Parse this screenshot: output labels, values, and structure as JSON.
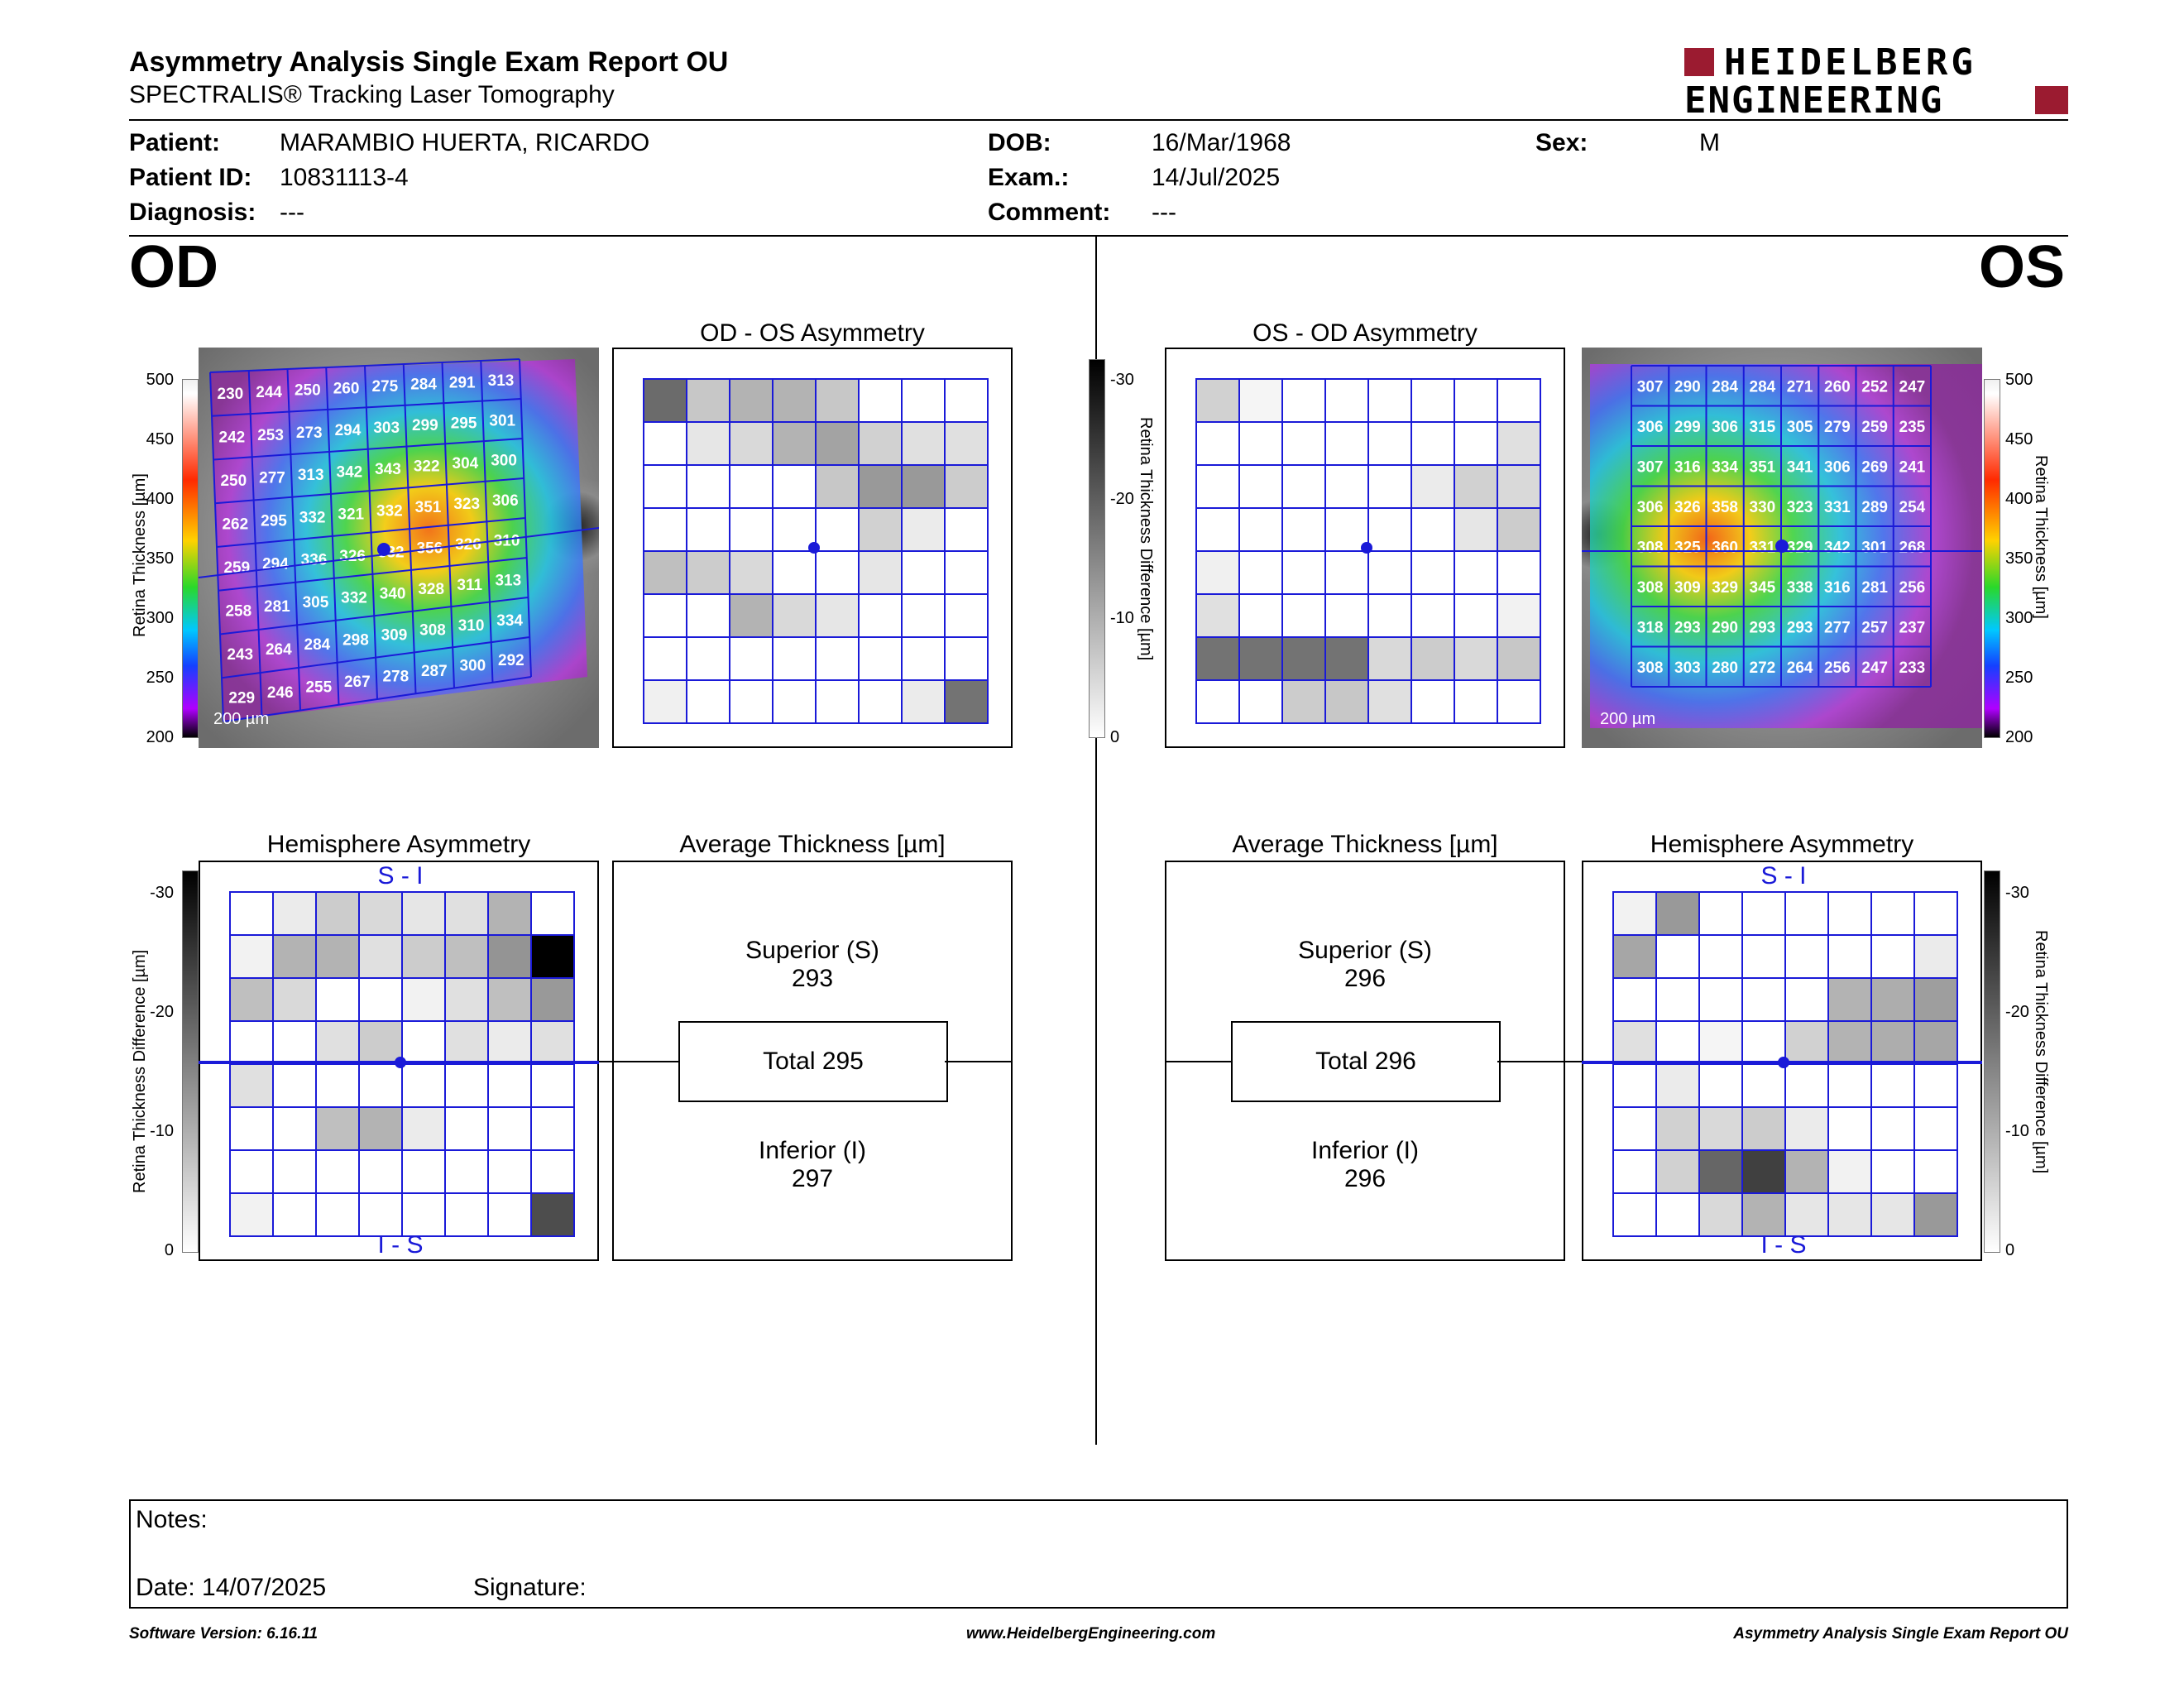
{
  "header": {
    "title": "Asymmetry Analysis Single Exam Report OU",
    "subtitle": "SPECTRALIS® Tracking Laser Tomography",
    "logo_line1": "HEIDELBERG",
    "logo_line2": "ENGINEERING",
    "brand_color": "#9b1b30"
  },
  "patient": {
    "patient_label": "Patient:",
    "patient_value": "MARAMBIO HUERTA, RICARDO",
    "id_label": "Patient ID:",
    "id_value": "10831113-4",
    "diagnosis_label": "Diagnosis:",
    "diagnosis_value": "---",
    "dob_label": "DOB:",
    "dob_value": "16/Mar/1968",
    "exam_label": "Exam.:",
    "exam_value": "14/Jul/2025",
    "comment_label": "Comment:",
    "comment_value": "---",
    "sex_label": "Sex:",
    "sex_value": "M"
  },
  "od": {
    "eye_label": "OD",
    "asym_title": "OD - OS Asymmetry",
    "hemi_title": "Hemisphere Asymmetry",
    "avg_title": "Average Thickness [µm]",
    "scale_label": "200 µm",
    "si_label": "S - I",
    "is_label": "I - S",
    "superior_label": "Superior (S)",
    "superior_value": "293",
    "total_label": "Total 295",
    "inferior_label": "Inferior (I)",
    "inferior_value": "297",
    "thickness_grid": [
      [
        230,
        244,
        250,
        260,
        275,
        284,
        291,
        313
      ],
      [
        242,
        253,
        273,
        294,
        303,
        299,
        295,
        301
      ],
      [
        250,
        277,
        313,
        342,
        343,
        322,
        304,
        300
      ],
      [
        262,
        295,
        332,
        321,
        332,
        351,
        323,
        306
      ],
      [
        259,
        294,
        336,
        326,
        332,
        356,
        326,
        310
      ],
      [
        258,
        281,
        305,
        332,
        340,
        328,
        311,
        313
      ],
      [
        243,
        264,
        284,
        298,
        309,
        308,
        310,
        334
      ],
      [
        229,
        246,
        255,
        267,
        278,
        287,
        300,
        292
      ]
    ],
    "asym_grid": [
      [
        0.58,
        0.22,
        0.3,
        0.3,
        0.22,
        0,
        0,
        0
      ],
      [
        0,
        0.1,
        0.15,
        0.3,
        0.36,
        0.18,
        0.12,
        0.12
      ],
      [
        0,
        0,
        0,
        0,
        0.22,
        0.4,
        0.4,
        0.2
      ],
      [
        0,
        0,
        0,
        0,
        0,
        0.18,
        0.08,
        0
      ],
      [
        0.25,
        0.2,
        0.15,
        0,
        0,
        0.1,
        0,
        0
      ],
      [
        0,
        0,
        0.3,
        0.15,
        0.1,
        0,
        0,
        0
      ],
      [
        0,
        0,
        0,
        0,
        0,
        0,
        0,
        0
      ],
      [
        0.06,
        0,
        0,
        0,
        0,
        0,
        0.08,
        0.55
      ]
    ],
    "hemi_grid": [
      [
        0,
        0.08,
        0.2,
        0.15,
        0.1,
        0.12,
        0.3,
        0
      ],
      [
        0.05,
        0.3,
        0.3,
        0.12,
        0.2,
        0.25,
        0.42,
        1.0
      ],
      [
        0.25,
        0.15,
        0,
        0,
        0.05,
        0.12,
        0.25,
        0.4
      ],
      [
        0,
        0,
        0.12,
        0.2,
        0,
        0.12,
        0.08,
        0.12
      ],
      [
        0.12,
        0,
        0,
        0,
        0,
        0,
        0,
        0
      ],
      [
        0,
        0,
        0.25,
        0.3,
        0.08,
        0,
        0,
        0
      ],
      [
        0,
        0,
        0,
        0,
        0,
        0,
        0,
        0
      ],
      [
        0.05,
        0,
        0,
        0,
        0,
        0,
        0,
        0.7
      ]
    ]
  },
  "os": {
    "eye_label": "OS",
    "asym_title": "OS - OD Asymmetry",
    "hemi_title": "Hemisphere Asymmetry",
    "avg_title": "Average Thickness [µm]",
    "scale_label": "200 µm",
    "si_label": "S - I",
    "is_label": "I - S",
    "superior_label": "Superior (S)",
    "superior_value": "296",
    "total_label": "Total 296",
    "inferior_label": "Inferior (I)",
    "inferior_value": "296",
    "thickness_grid": [
      [
        307,
        290,
        284,
        284,
        271,
        260,
        252,
        247
      ],
      [
        306,
        299,
        306,
        315,
        305,
        279,
        259,
        235
      ],
      [
        307,
        316,
        334,
        351,
        341,
        306,
        269,
        241
      ],
      [
        306,
        326,
        358,
        330,
        323,
        331,
        289,
        254
      ],
      [
        308,
        325,
        360,
        331,
        329,
        342,
        301,
        268
      ],
      [
        308,
        309,
        329,
        345,
        338,
        316,
        281,
        256
      ],
      [
        318,
        293,
        290,
        293,
        293,
        277,
        257,
        237
      ],
      [
        308,
        303,
        280,
        272,
        264,
        256,
        247,
        233
      ]
    ],
    "asym_grid": [
      [
        0.18,
        0.04,
        0,
        0,
        0,
        0,
        0,
        0
      ],
      [
        0,
        0,
        0,
        0,
        0,
        0,
        0,
        0.12
      ],
      [
        0,
        0,
        0,
        0,
        0,
        0.08,
        0.18,
        0.15
      ],
      [
        0,
        0,
        0,
        0,
        0,
        0,
        0.1,
        0.2
      ],
      [
        0.06,
        0,
        0,
        0,
        0,
        0,
        0,
        0
      ],
      [
        0.12,
        0,
        0,
        0,
        0,
        0,
        0,
        0.05
      ],
      [
        0.55,
        0.55,
        0.55,
        0.55,
        0.15,
        0.2,
        0.15,
        0.22
      ],
      [
        0,
        0,
        0.2,
        0.22,
        0.12,
        0,
        0,
        0
      ]
    ],
    "hemi_grid": [
      [
        0.05,
        0.4,
        0,
        0,
        0,
        0,
        0,
        0
      ],
      [
        0.35,
        0,
        0,
        0,
        0,
        0,
        0,
        0.08
      ],
      [
        0,
        0,
        0,
        0,
        0,
        0.3,
        0.32,
        0.38
      ],
      [
        0.12,
        0,
        0.04,
        0,
        0.18,
        0.3,
        0.32,
        0.35
      ],
      [
        0,
        0.08,
        0,
        0,
        0,
        0,
        0,
        0
      ],
      [
        0,
        0.18,
        0.15,
        0.2,
        0.08,
        0,
        0,
        0
      ],
      [
        0,
        0.18,
        0.6,
        0.75,
        0.3,
        0.05,
        0,
        0
      ],
      [
        0,
        0,
        0.15,
        0.3,
        0.1,
        0.1,
        0.1,
        0.4
      ]
    ]
  },
  "thickness_axis": {
    "label": "Retina Thickness [µm]",
    "ticks": [
      "500",
      "450",
      "400",
      "350",
      "300",
      "250",
      "200"
    ]
  },
  "diff_axis": {
    "label": "Retina Thickness Difference [µm]",
    "ticks": [
      "-30",
      "-20",
      "-10",
      "0"
    ]
  },
  "notes": {
    "notes_label": "Notes:",
    "date_label": "Date: 14/07/2025",
    "signature_label": "Signature:"
  },
  "footer": {
    "version": "Software Version: 6.16.11",
    "website": "www.HeidelbergEngineering.com",
    "report_name": "Asymmetry Analysis Single Exam Report OU"
  },
  "colors": {
    "grid_line": "#1a1ad8",
    "text": "#000000"
  }
}
